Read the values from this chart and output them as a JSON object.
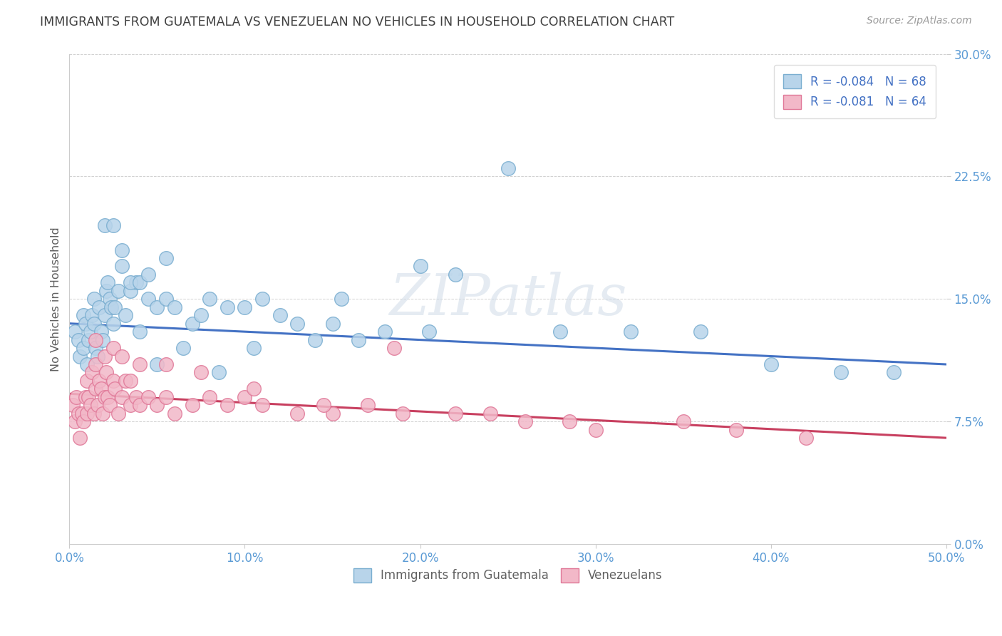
{
  "title": "IMMIGRANTS FROM GUATEMALA VS VENEZUELAN NO VEHICLES IN HOUSEHOLD CORRELATION CHART",
  "source": "Source: ZipAtlas.com",
  "xlabel": "",
  "ylabel": "No Vehicles in Household",
  "x_min": 0.0,
  "x_max": 50.0,
  "y_min": 0.0,
  "y_max": 30.0,
  "x_ticks": [
    0.0,
    10.0,
    20.0,
    30.0,
    40.0,
    50.0
  ],
  "y_ticks": [
    0.0,
    7.5,
    15.0,
    22.5,
    30.0
  ],
  "series1_label": "Immigrants from Guatemala",
  "series2_label": "Venezuelans",
  "series1_color": "#b8d4ea",
  "series2_color": "#f2b8c8",
  "series1_edge_color": "#7aaed0",
  "series2_edge_color": "#e07898",
  "series1_line_color": "#4472c4",
  "series2_line_color": "#c84060",
  "legend_r1": "R = -0.084",
  "legend_n1": "N = 68",
  "legend_r2": "R = -0.081",
  "legend_n2": "N = 64",
  "watermark": "ZIPatlas",
  "series1_R": -0.084,
  "series1_N": 68,
  "series2_R": -0.081,
  "series2_N": 64,
  "series1_x": [
    0.3,
    0.5,
    0.6,
    0.8,
    0.8,
    0.9,
    1.0,
    1.1,
    1.2,
    1.3,
    1.4,
    1.4,
    1.5,
    1.6,
    1.7,
    1.8,
    1.9,
    2.0,
    2.1,
    2.2,
    2.3,
    2.4,
    2.5,
    2.6,
    2.8,
    3.0,
    3.2,
    3.5,
    3.8,
    4.0,
    4.5,
    5.0,
    5.5,
    6.0,
    7.0,
    7.5,
    8.0,
    9.0,
    10.0,
    11.0,
    12.0,
    13.0,
    14.0,
    15.0,
    16.5,
    18.0,
    20.0,
    22.0,
    25.0,
    28.0,
    5.0,
    6.5,
    8.5,
    10.5,
    15.5,
    20.5,
    32.0,
    36.0,
    40.0,
    44.0,
    47.0,
    2.0,
    2.5,
    3.0,
    3.5,
    4.0,
    4.5,
    5.5
  ],
  "series1_y": [
    13.0,
    12.5,
    11.5,
    12.0,
    14.0,
    13.5,
    11.0,
    12.5,
    13.0,
    14.0,
    15.0,
    13.5,
    12.0,
    11.5,
    14.5,
    13.0,
    12.5,
    14.0,
    15.5,
    16.0,
    15.0,
    14.5,
    13.5,
    14.5,
    15.5,
    17.0,
    14.0,
    15.5,
    16.0,
    13.0,
    15.0,
    14.5,
    15.0,
    14.5,
    13.5,
    14.0,
    15.0,
    14.5,
    14.5,
    15.0,
    14.0,
    13.5,
    12.5,
    13.5,
    12.5,
    13.0,
    17.0,
    16.5,
    23.0,
    13.0,
    11.0,
    12.0,
    10.5,
    12.0,
    15.0,
    13.0,
    13.0,
    13.0,
    11.0,
    10.5,
    10.5,
    19.5,
    19.5,
    18.0,
    16.0,
    16.0,
    16.5,
    17.5
  ],
  "series2_x": [
    0.2,
    0.3,
    0.4,
    0.5,
    0.6,
    0.7,
    0.8,
    0.9,
    1.0,
    1.0,
    1.1,
    1.2,
    1.3,
    1.4,
    1.5,
    1.5,
    1.6,
    1.7,
    1.8,
    1.9,
    2.0,
    2.0,
    2.1,
    2.2,
    2.3,
    2.5,
    2.6,
    2.8,
    3.0,
    3.2,
    3.5,
    3.5,
    3.8,
    4.0,
    4.5,
    5.0,
    5.5,
    6.0,
    7.0,
    8.0,
    9.0,
    10.0,
    11.0,
    13.0,
    15.0,
    17.0,
    19.0,
    22.0,
    26.0,
    30.0,
    35.0,
    38.0,
    42.0,
    1.5,
    2.5,
    3.0,
    4.0,
    5.5,
    7.5,
    10.5,
    14.5,
    18.5,
    24.0,
    28.5
  ],
  "series2_y": [
    8.5,
    7.5,
    9.0,
    8.0,
    6.5,
    8.0,
    7.5,
    9.0,
    8.0,
    10.0,
    9.0,
    8.5,
    10.5,
    8.0,
    9.5,
    11.0,
    8.5,
    10.0,
    9.5,
    8.0,
    9.0,
    11.5,
    10.5,
    9.0,
    8.5,
    10.0,
    9.5,
    8.0,
    9.0,
    10.0,
    8.5,
    10.0,
    9.0,
    8.5,
    9.0,
    8.5,
    9.0,
    8.0,
    8.5,
    9.0,
    8.5,
    9.0,
    8.5,
    8.0,
    8.0,
    8.5,
    8.0,
    8.0,
    7.5,
    7.0,
    7.5,
    7.0,
    6.5,
    12.5,
    12.0,
    11.5,
    11.0,
    11.0,
    10.5,
    9.5,
    8.5,
    12.0,
    8.0,
    7.5
  ],
  "trend1_x0": 0.0,
  "trend1_y0": 13.5,
  "trend1_x1": 50.0,
  "trend1_y1": 11.0,
  "trend2_x0": 0.0,
  "trend2_y0": 9.2,
  "trend2_x1": 50.0,
  "trend2_y1": 6.5,
  "bg_color": "#ffffff",
  "grid_color": "#cccccc",
  "tick_color": "#5b9bd5",
  "title_color": "#404040",
  "ylabel_color": "#606060",
  "source_color": "#999999",
  "legend_text_color": "#4472c4",
  "legend_r_color": "#c00000"
}
